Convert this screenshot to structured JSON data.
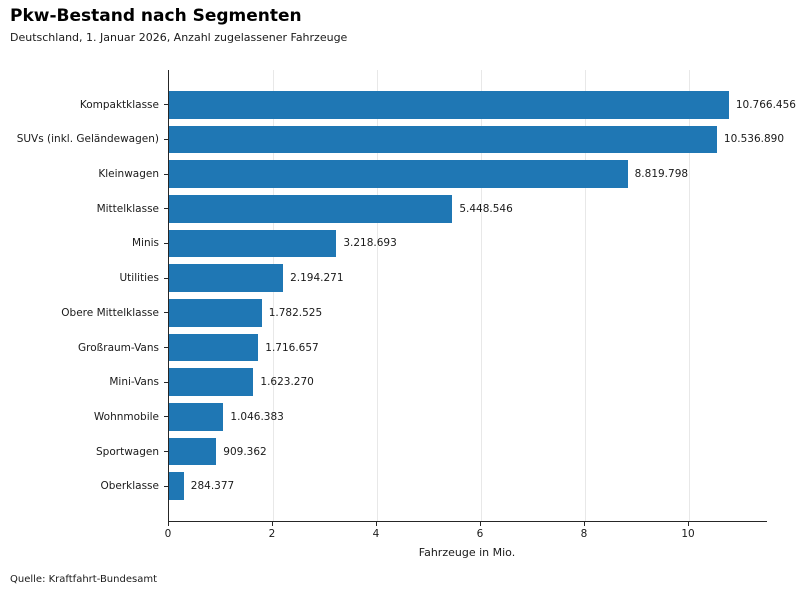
{
  "header": {
    "title": "Pkw-Bestand nach Segmenten",
    "subtitle": "Deutschland, 1. Januar 2026, Anzahl zugelassener Fahrzeuge"
  },
  "footer": {
    "source": "Quelle: Kraftfahrt-Bundesamt"
  },
  "chart_data": {
    "type": "bar",
    "orientation": "horizontal",
    "title": "Pkw-Bestand nach Segmenten",
    "subtitle": "Deutschland, 1. Januar 2026, Anzahl zugelassener Fahrzeuge",
    "xlabel": "Fahrzeuge in Mio.",
    "source": "Quelle: Kraftfahrt-Bundesamt",
    "categories": [
      "Kompaktklasse",
      "SUVs (inkl. Geländewagen)",
      "Kleinwagen",
      "Mittelklasse",
      "Minis",
      "Utilities",
      "Obere Mittelklasse",
      "Großraum-Vans",
      "Mini-Vans",
      "Wohnmobile",
      "Sportwagen",
      "Oberklasse"
    ],
    "values": [
      10766456,
      10536890,
      8819798,
      5448546,
      3218693,
      2194271,
      1782525,
      1716657,
      1623270,
      1046383,
      909362,
      284377
    ],
    "value_labels": [
      "10.766.456",
      "10.536.890",
      "8.819.798",
      "5.448.546",
      "3.218.693",
      "2.194.271",
      "1.782.525",
      "1.716.657",
      "1.623.270",
      "1.046.383",
      "909.362",
      "284.377"
    ],
    "xticks": [
      0,
      2,
      4,
      6,
      8,
      10
    ],
    "xlim_mio": [
      0,
      11.5
    ],
    "grid": "vertical",
    "legend": "none",
    "bar_color": "#1f77b4",
    "axis_color": "#262626",
    "grid_color": "#e8e8e8"
  }
}
